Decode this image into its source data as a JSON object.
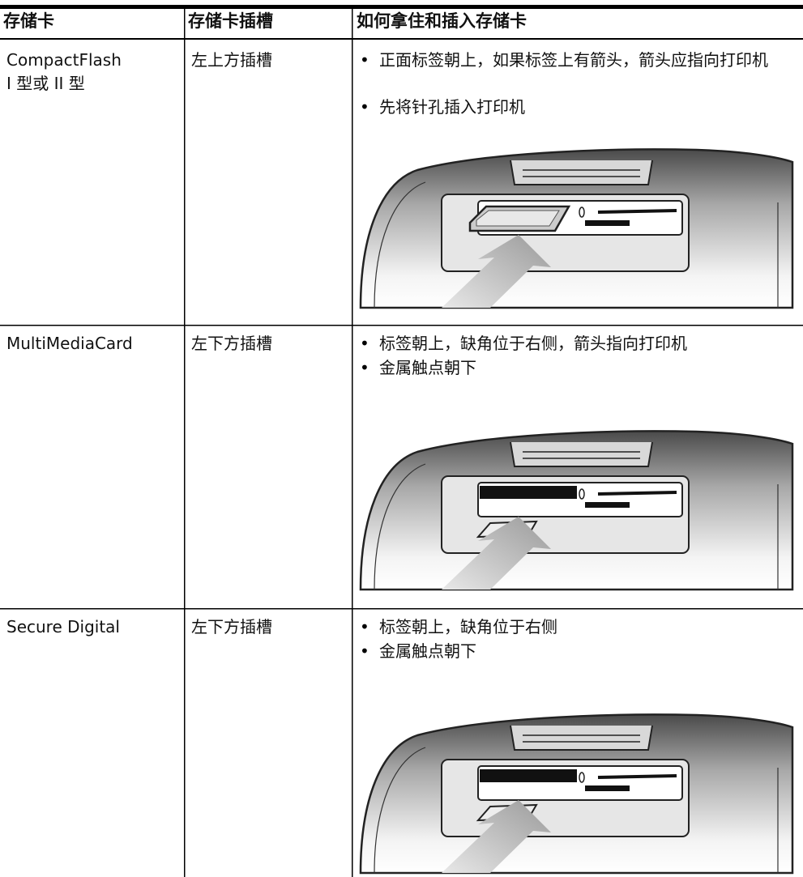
{
  "header": {
    "columns": [
      "存储卡",
      "存储卡插槽",
      "如何拿住和插入存储卡"
    ]
  },
  "rows": [
    {
      "card": [
        "CompactFlash",
        "I 型或 II 型"
      ],
      "slot": "左上方插槽",
      "instructions": [
        "正面标签朝上，如果标签上有箭头，箭头应指向打印机",
        "先将针孔插入打印机"
      ]
    },
    {
      "card": [
        "MultiMediaCard"
      ],
      "slot": "左下方插槽",
      "instructions": [
        "标签朝上，缺角位于右侧，箭头指向打印机",
        "金属触点朝下"
      ]
    },
    {
      "card": [
        "Secure Digital"
      ],
      "slot": "左下方插槽",
      "instructions": [
        "标签朝上，缺角位于右侧",
        "金属触点朝下"
      ]
    }
  ]
}
